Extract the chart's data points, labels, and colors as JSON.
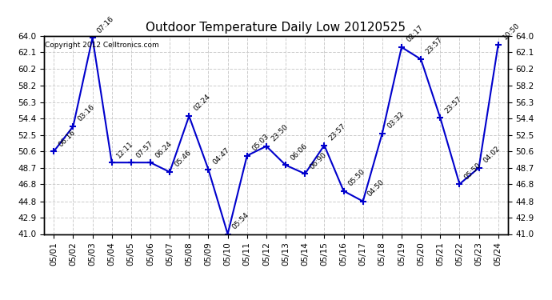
{
  "title": "Outdoor Temperature Daily Low 20120525",
  "copyright": "Copyright 2012 Celltronics.com",
  "dates": [
    "05/01",
    "05/02",
    "05/03",
    "05/04",
    "05/05",
    "05/06",
    "05/07",
    "05/08",
    "05/09",
    "05/10",
    "05/11",
    "05/12",
    "05/13",
    "05/14",
    "05/15",
    "05/16",
    "05/17",
    "05/18",
    "05/19",
    "05/20",
    "05/21",
    "05/22",
    "05/23",
    "05/24"
  ],
  "values": [
    50.6,
    53.5,
    63.8,
    49.3,
    49.3,
    49.3,
    48.2,
    54.7,
    48.5,
    41.0,
    50.1,
    51.2,
    49.0,
    48.0,
    51.3,
    46.0,
    44.8,
    52.7,
    62.7,
    61.3,
    54.5,
    46.8,
    48.7,
    63.0
  ],
  "annotations": [
    "06:16",
    "03:16",
    "07:16",
    "12:11",
    "07:57",
    "06:24",
    "05:46",
    "02:24",
    "04:47",
    "05:54",
    "05:03",
    "23:50",
    "06:06",
    "06:90",
    "23:57",
    "05:50",
    "04:50",
    "03:32",
    "02:17",
    "23:57",
    "23:57",
    "05:50",
    "04:02",
    "10:50"
  ],
  "line_color": "#0000cc",
  "marker_color": "#0000cc",
  "bg_color": "#ffffff",
  "grid_color": "#cccccc",
  "ylim": [
    41.0,
    64.0
  ],
  "yticks": [
    41.0,
    42.9,
    44.8,
    46.8,
    48.7,
    50.6,
    52.5,
    54.4,
    56.3,
    58.2,
    60.2,
    62.1,
    64.0
  ],
  "title_fontsize": 11,
  "annotation_fontsize": 6.5,
  "copyright_fontsize": 6.5,
  "tick_fontsize": 7.5
}
